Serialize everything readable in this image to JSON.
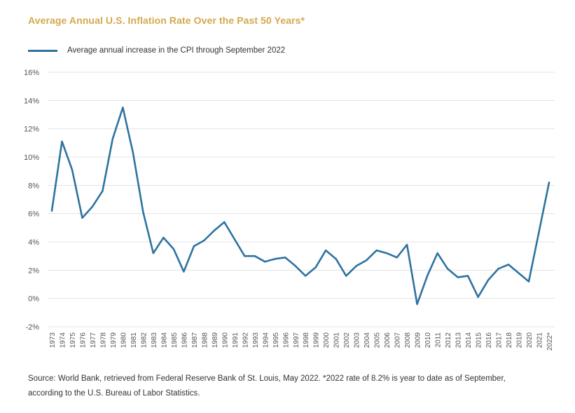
{
  "title": "Average Annual U.S. Inflation Rate Over the Past 50 Years*",
  "source_note": "Source: World Bank, retrieved from Federal Reserve Bank of St. Louis, May 2022. *2022 rate of 8.2% is year to date as of September, according to the U.S. Bureau of Labor Statistics.",
  "chart_data": {
    "type": "line",
    "title": "Average Annual U.S. Inflation Rate Over the Past 50 Years*",
    "xlabel": "",
    "ylabel": "",
    "ylim": [
      -2,
      16
    ],
    "yticks": [
      -2,
      0,
      2,
      4,
      6,
      8,
      10,
      12,
      14,
      16
    ],
    "ytick_labels": [
      "-2%",
      "0%",
      "2%",
      "4%",
      "6%",
      "8%",
      "10%",
      "12%",
      "14%",
      "16%"
    ],
    "grid": true,
    "legend_position": "top-left",
    "categories": [
      "1973",
      "1974",
      "1975",
      "1976",
      "1977",
      "1978",
      "1979",
      "1980",
      "1981",
      "1982",
      "1983",
      "1984",
      "1985",
      "1986",
      "1987",
      "1988",
      "1989",
      "1990",
      "1991",
      "1992",
      "1993",
      "1994",
      "1995",
      "1996",
      "1997",
      "1998",
      "1999",
      "2000",
      "2001",
      "2002",
      "2003",
      "2004",
      "2005",
      "2006",
      "2007",
      "2008",
      "2009",
      "2010",
      "2011",
      "2012",
      "2013",
      "2014",
      "2015",
      "2016",
      "2017",
      "2018",
      "2019",
      "2020",
      "2021",
      "2022*"
    ],
    "series": [
      {
        "name": "Average annual increase in the CPI through September 2022",
        "color": "#2e73a0",
        "values": [
          6.2,
          11.1,
          9.1,
          5.7,
          6.5,
          7.6,
          11.3,
          13.5,
          10.3,
          6.1,
          3.2,
          4.3,
          3.5,
          1.9,
          3.7,
          4.1,
          4.8,
          5.4,
          4.2,
          3.0,
          3.0,
          2.6,
          2.8,
          2.9,
          2.3,
          1.6,
          2.2,
          3.4,
          2.8,
          1.6,
          2.3,
          2.7,
          3.4,
          3.2,
          2.9,
          3.8,
          -0.4,
          1.6,
          3.2,
          2.1,
          1.5,
          1.6,
          0.1,
          1.3,
          2.1,
          2.4,
          1.8,
          1.2,
          4.7,
          8.2
        ]
      }
    ]
  }
}
